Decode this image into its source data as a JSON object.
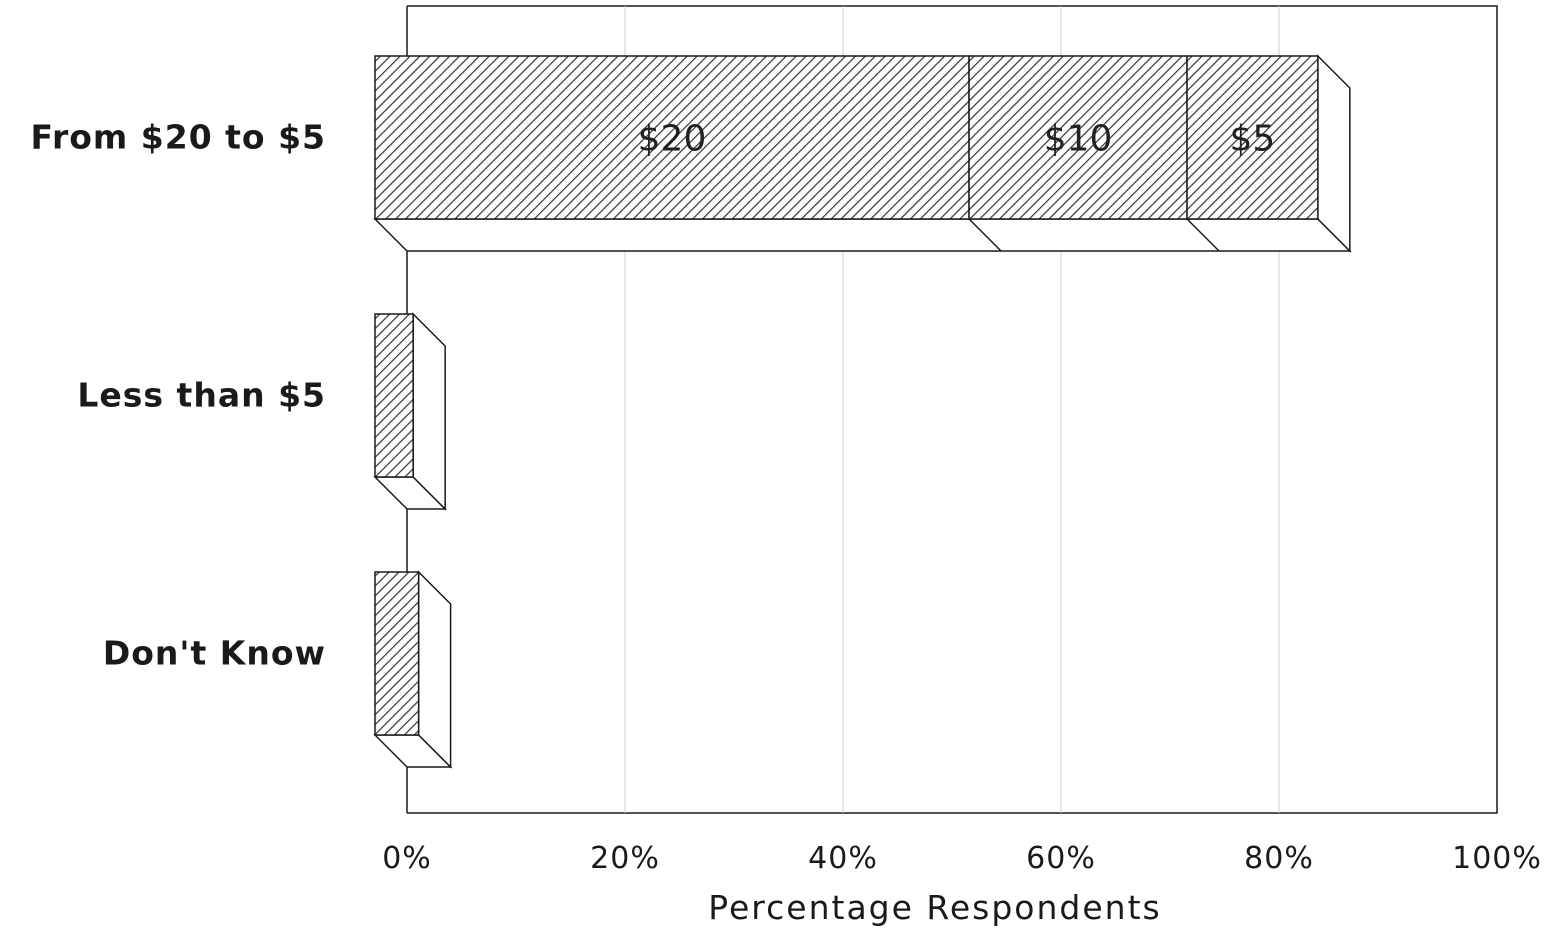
{
  "chart_data": {
    "type": "bar",
    "orientation": "horizontal",
    "stacked": true,
    "style": "3d-hatched",
    "categories": [
      "From $20 to $5",
      "Less than $5",
      "Don't Know"
    ],
    "series": [
      {
        "segment_label": "$20",
        "values": [
          54.5,
          3.5,
          4.0
        ]
      },
      {
        "segment_label": "$10",
        "values": [
          20.0,
          0,
          0
        ]
      },
      {
        "segment_label": "$5",
        "values": [
          12.0,
          0,
          0
        ]
      }
    ],
    "xlabel": "Percentage Respondents",
    "ylabel": "",
    "title": "",
    "xlim": [
      0,
      100
    ],
    "xticks": [
      0,
      20,
      40,
      60,
      80,
      100
    ],
    "xtick_labels": [
      "0%",
      "20%",
      "40%",
      "60%",
      "80%",
      "100%"
    ],
    "grid": "vertical",
    "legend": "none",
    "colors": {
      "bar_fill": "#ffffff",
      "hatch": "#333333",
      "outline": "#1a1a1a",
      "grid": "#cccccc"
    }
  }
}
